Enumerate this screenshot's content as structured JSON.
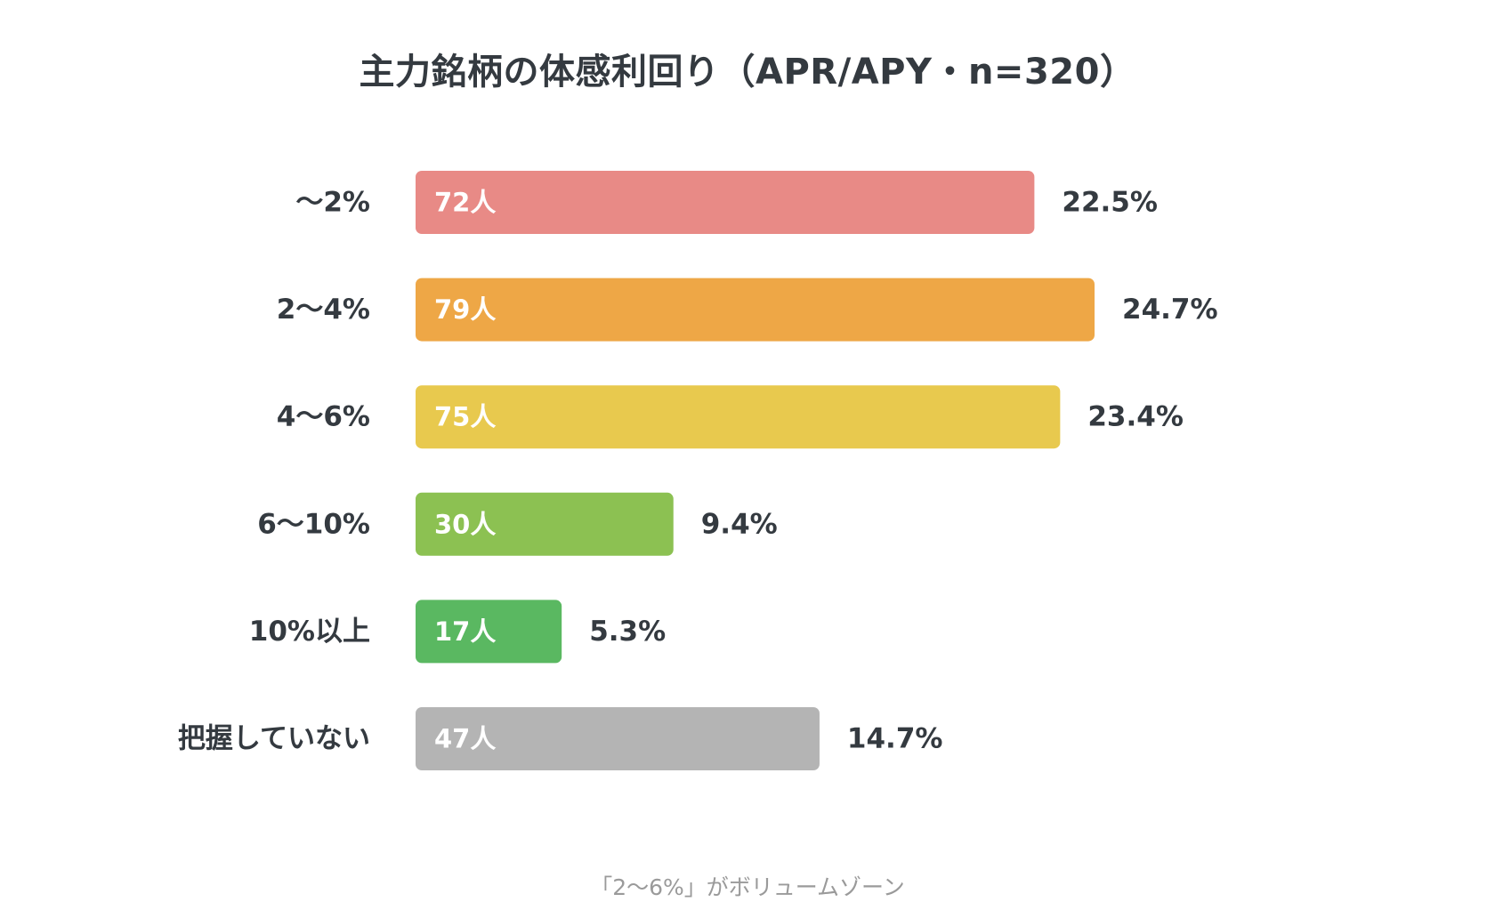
{
  "chart_data": {
    "type": "bar",
    "orientation": "horizontal",
    "title": "主力銘柄の体感利回り（APR/APY・n=320）",
    "categories": [
      "～2%",
      "2～4%",
      "4～6%",
      "6～10%",
      "10%以上",
      "把握していない"
    ],
    "values": [
      72,
      79,
      75,
      30,
      17,
      47
    ],
    "count_labels": [
      "72人",
      "79人",
      "75人",
      "30人",
      "17人",
      "47人"
    ],
    "percent_labels": [
      "22.5%",
      "24.7%",
      "23.4%",
      "9.4%",
      "5.3%",
      "14.7%"
    ],
    "colors": [
      "#e88a86",
      "#eea746",
      "#e8c94e",
      "#8cc152",
      "#5ab861",
      "#b4b4b4"
    ],
    "xlim": [
      0,
      79
    ],
    "grid": false,
    "legend": "none",
    "xlabel": "",
    "ylabel": "",
    "footnote": "「2～6%」がボリュームゾーン"
  }
}
